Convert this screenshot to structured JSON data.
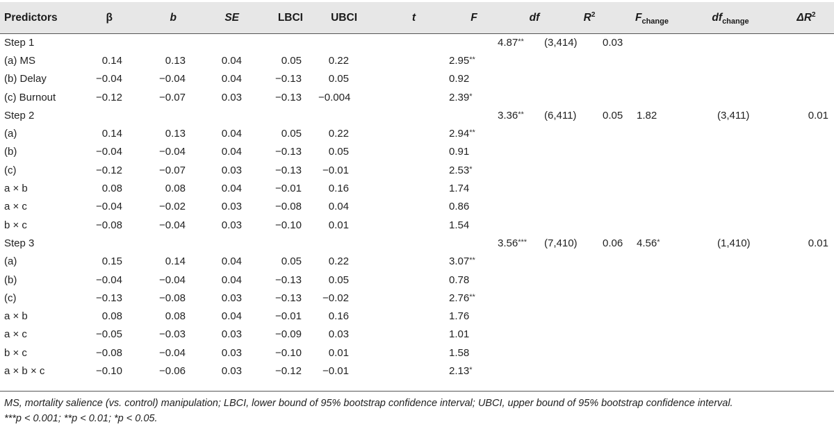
{
  "headers": {
    "predictors": "Predictors",
    "beta": "β",
    "b": "b",
    "se": "SE",
    "lbci": "LBCI",
    "ubci": "UBCI",
    "t": "t",
    "F": "F",
    "df": "df",
    "R": "R",
    "R_sup": "2",
    "F_change": "F",
    "F_change_sub": "change",
    "df_change": "df",
    "df_change_sub": "change",
    "delta_R": "ΔR",
    "delta_R_sup": "2"
  },
  "rows": [
    {
      "label": "Step 1",
      "beta": "",
      "b": "",
      "se": "",
      "lbci": "",
      "ubci": "",
      "t": "",
      "t_sig": "",
      "F": "4.87",
      "F_sig": "**",
      "df": "(3,414)",
      "R2": "0.03",
      "Fch": "",
      "Fch_sig": "",
      "dfch": "",
      "dR2": ""
    },
    {
      "label": "(a) MS",
      "beta": "0.14",
      "b": "0.13",
      "se": "0.04",
      "lbci": "0.05",
      "ubci": "0.22",
      "t": "2.95",
      "t_sig": "**",
      "F": "",
      "F_sig": "",
      "df": "",
      "R2": "",
      "Fch": "",
      "Fch_sig": "",
      "dfch": "",
      "dR2": ""
    },
    {
      "label": "(b) Delay",
      "beta": "−0.04",
      "b": "−0.04",
      "se": "0.04",
      "lbci": "−0.13",
      "ubci": "0.05",
      "t": "0.92",
      "t_sig": "",
      "F": "",
      "F_sig": "",
      "df": "",
      "R2": "",
      "Fch": "",
      "Fch_sig": "",
      "dfch": "",
      "dR2": ""
    },
    {
      "label": "(c) Burnout",
      "beta": "−0.12",
      "b": "−0.07",
      "se": "0.03",
      "lbci": "−0.13",
      "ubci": "−0.004",
      "t": "2.39",
      "t_sig": "*",
      "F": "",
      "F_sig": "",
      "df": "",
      "R2": "",
      "Fch": "",
      "Fch_sig": "",
      "dfch": "",
      "dR2": ""
    },
    {
      "label": "Step 2",
      "beta": "",
      "b": "",
      "se": "",
      "lbci": "",
      "ubci": "",
      "t": "",
      "t_sig": "",
      "F": "3.36",
      "F_sig": "**",
      "df": "(6,411)",
      "R2": "0.05",
      "Fch": "1.82",
      "Fch_sig": "",
      "dfch": "(3,411)",
      "dR2": "0.01"
    },
    {
      "label": "(a)",
      "beta": "0.14",
      "b": "0.13",
      "se": "0.04",
      "lbci": "0.05",
      "ubci": "0.22",
      "t": "2.94",
      "t_sig": "**",
      "F": "",
      "F_sig": "",
      "df": "",
      "R2": "",
      "Fch": "",
      "Fch_sig": "",
      "dfch": "",
      "dR2": ""
    },
    {
      "label": "(b)",
      "beta": "−0.04",
      "b": "−0.04",
      "se": "0.04",
      "lbci": "−0.13",
      "ubci": "0.05",
      "t": "0.91",
      "t_sig": "",
      "F": "",
      "F_sig": "",
      "df": "",
      "R2": "",
      "Fch": "",
      "Fch_sig": "",
      "dfch": "",
      "dR2": ""
    },
    {
      "label": "(c)",
      "beta": "−0.12",
      "b": "−0.07",
      "se": "0.03",
      "lbci": "−0.13",
      "ubci": "−0.01",
      "t": "2.53",
      "t_sig": "*",
      "F": "",
      "F_sig": "",
      "df": "",
      "R2": "",
      "Fch": "",
      "Fch_sig": "",
      "dfch": "",
      "dR2": ""
    },
    {
      "label": "a × b",
      "beta": "0.08",
      "b": "0.08",
      "se": "0.04",
      "lbci": "−0.01",
      "ubci": "0.16",
      "t": "1.74",
      "t_sig": "",
      "F": "",
      "F_sig": "",
      "df": "",
      "R2": "",
      "Fch": "",
      "Fch_sig": "",
      "dfch": "",
      "dR2": ""
    },
    {
      "label": "a × c",
      "beta": "−0.04",
      "b": "−0.02",
      "se": "0.03",
      "lbci": "−0.08",
      "ubci": "0.04",
      "t": "0.86",
      "t_sig": "",
      "F": "",
      "F_sig": "",
      "df": "",
      "R2": "",
      "Fch": "",
      "Fch_sig": "",
      "dfch": "",
      "dR2": ""
    },
    {
      "label": "b × c",
      "beta": "−0.08",
      "b": "−0.04",
      "se": "0.03",
      "lbci": "−0.10",
      "ubci": "0.01",
      "t": "1.54",
      "t_sig": "",
      "F": "",
      "F_sig": "",
      "df": "",
      "R2": "",
      "Fch": "",
      "Fch_sig": "",
      "dfch": "",
      "dR2": ""
    },
    {
      "label": "Step 3",
      "beta": "",
      "b": "",
      "se": "",
      "lbci": "",
      "ubci": "",
      "t": "",
      "t_sig": "",
      "F": "3.56",
      "F_sig": "***",
      "df": "(7,410)",
      "R2": "0.06",
      "Fch": "4.56",
      "Fch_sig": "*",
      "dfch": "(1,410)",
      "dR2": "0.01"
    },
    {
      "label": "(a)",
      "beta": "0.15",
      "b": "0.14",
      "se": "0.04",
      "lbci": "0.05",
      "ubci": "0.22",
      "t": "3.07",
      "t_sig": "**",
      "F": "",
      "F_sig": "",
      "df": "",
      "R2": "",
      "Fch": "",
      "Fch_sig": "",
      "dfch": "",
      "dR2": ""
    },
    {
      "label": "(b)",
      "beta": "−0.04",
      "b": "−0.04",
      "se": "0.04",
      "lbci": "−0.13",
      "ubci": "0.05",
      "t": "0.78",
      "t_sig": "",
      "F": "",
      "F_sig": "",
      "df": "",
      "R2": "",
      "Fch": "",
      "Fch_sig": "",
      "dfch": "",
      "dR2": ""
    },
    {
      "label": "(c)",
      "beta": "−0.13",
      "b": "−0.08",
      "se": "0.03",
      "lbci": "−0.13",
      "ubci": "−0.02",
      "t": "2.76",
      "t_sig": "**",
      "F": "",
      "F_sig": "",
      "df": "",
      "R2": "",
      "Fch": "",
      "Fch_sig": "",
      "dfch": "",
      "dR2": ""
    },
    {
      "label": "a × b",
      "beta": "0.08",
      "b": "0.08",
      "se": "0.04",
      "lbci": "−0.01",
      "ubci": "0.16",
      "t": "1.76",
      "t_sig": "",
      "F": "",
      "F_sig": "",
      "df": "",
      "R2": "",
      "Fch": "",
      "Fch_sig": "",
      "dfch": "",
      "dR2": ""
    },
    {
      "label": "a × c",
      "beta": "−0.05",
      "b": "−0.03",
      "se": "0.03",
      "lbci": "−0.09",
      "ubci": "0.03",
      "t": "1.01",
      "t_sig": "",
      "F": "",
      "F_sig": "",
      "df": "",
      "R2": "",
      "Fch": "",
      "Fch_sig": "",
      "dfch": "",
      "dR2": ""
    },
    {
      "label": "b × c",
      "beta": "−0.08",
      "b": "−0.04",
      "se": "0.03",
      "lbci": "−0.10",
      "ubci": "0.01",
      "t": "1.58",
      "t_sig": "",
      "F": "",
      "F_sig": "",
      "df": "",
      "R2": "",
      "Fch": "",
      "Fch_sig": "",
      "dfch": "",
      "dR2": ""
    },
    {
      "label": "a × b × c",
      "beta": "−0.10",
      "b": "−0.06",
      "se": "0.03",
      "lbci": "−0.12",
      "ubci": "−0.01",
      "t": "2.13",
      "t_sig": "*",
      "F": "",
      "F_sig": "",
      "df": "",
      "R2": "",
      "Fch": "",
      "Fch_sig": "",
      "dfch": "",
      "dR2": ""
    }
  ],
  "note": {
    "line1": "MS, mortality salience (vs. control) manipulation; LBCI, lower bound of 95% bootstrap confidence interval; UBCI, upper bound of 95% bootstrap confidence interval.",
    "line2": "***p < 0.001; **p < 0.01; *p < 0.05."
  },
  "colors": {
    "header_background": "#e7e7e7",
    "text": "#222222",
    "rule": "#555555"
  }
}
